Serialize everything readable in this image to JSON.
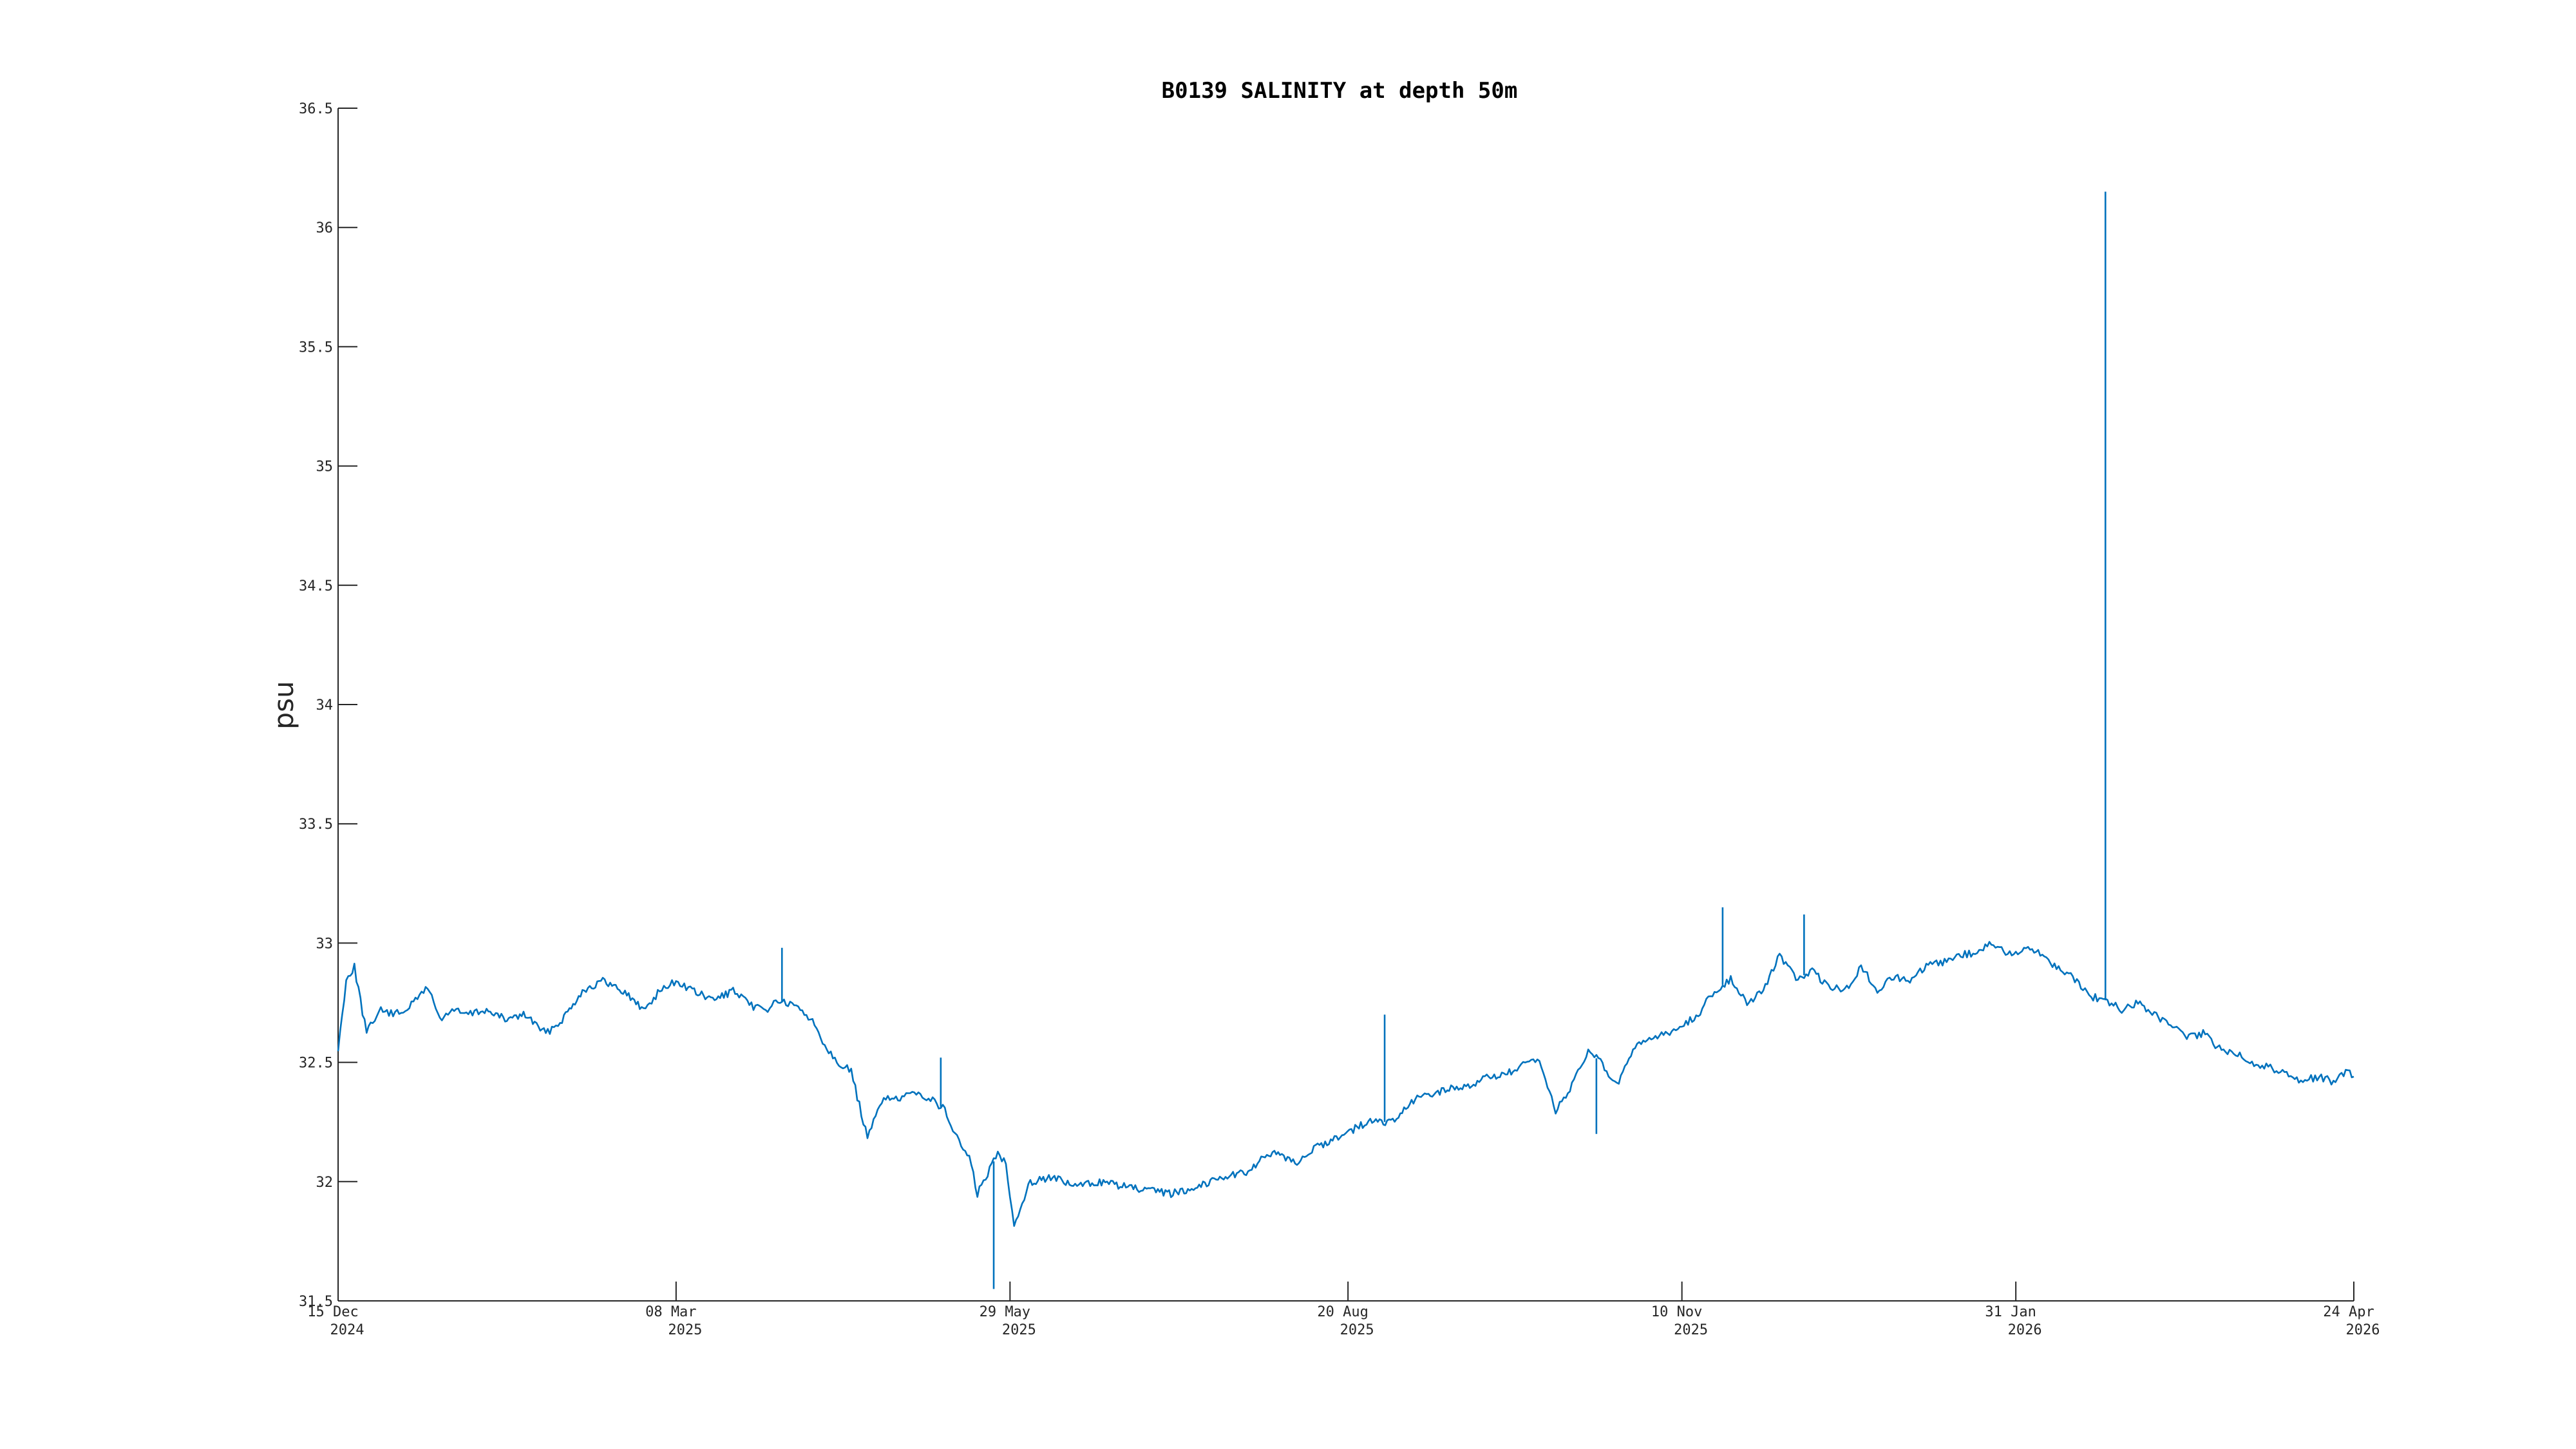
{
  "chart_data": {
    "type": "line",
    "title": "B0139 SALINITY at depth 50m",
    "ylabel": "psu",
    "xlabel": "",
    "xlim": [
      "2024-12-15",
      "2026-04-24"
    ],
    "ylim": [
      31.5,
      36.5
    ],
    "grid": false,
    "colors": {
      "series": "#0072BD",
      "axis": "#262626"
    },
    "yticks": [
      {
        "value": 31.5,
        "label": "31.5"
      },
      {
        "value": 32,
        "label": "32"
      },
      {
        "value": 32.5,
        "label": "32.5"
      },
      {
        "value": 33,
        "label": "33"
      },
      {
        "value": 33.5,
        "label": "33.5"
      },
      {
        "value": 34,
        "label": "34"
      },
      {
        "value": 34.5,
        "label": "34.5"
      },
      {
        "value": 35,
        "label": "35"
      },
      {
        "value": 35.5,
        "label": "35.5"
      },
      {
        "value": 36,
        "label": "36"
      },
      {
        "value": 36.5,
        "label": "36.5"
      }
    ],
    "xticks": [
      {
        "date": "2024-12-15",
        "line1": "15 Dec",
        "line2": "2024"
      },
      {
        "date": "2025-03-08",
        "line1": "08 Mar",
        "line2": "2025"
      },
      {
        "date": "2025-05-29",
        "line1": "29 May",
        "line2": "2025"
      },
      {
        "date": "2025-08-20",
        "line1": "20 Aug",
        "line2": "2025"
      },
      {
        "date": "2025-11-10",
        "line1": "10 Nov",
        "line2": "2025"
      },
      {
        "date": "2026-01-31",
        "line1": "31 Jan",
        "line2": "2026"
      },
      {
        "date": "2026-04-24",
        "line1": "24 Apr",
        "line2": "2026"
      }
    ],
    "series": [
      {
        "x": [
          "2024-12-15",
          "2024-12-17",
          "2024-12-19",
          "2024-12-22",
          "2024-12-25",
          "2024-12-29",
          "2025-01-02",
          "2025-01-06",
          "2025-01-09",
          "2025-01-12",
          "2025-01-16",
          "2025-01-20",
          "2025-01-25",
          "2025-01-30",
          "2025-02-04",
          "2025-02-08",
          "2025-02-13",
          "2025-02-18",
          "2025-02-23",
          "2025-02-28",
          "2025-03-04",
          "2025-03-08",
          "2025-03-12",
          "2025-03-17",
          "2025-03-22",
          "2025-03-26",
          "2025-03-30",
          "2025-04-02",
          "2025-04-05",
          "2025-04-08",
          "2025-04-11",
          "2025-04-14",
          "2025-04-17",
          "2025-04-20",
          "2025-04-24",
          "2025-04-28",
          "2025-05-02",
          "2025-05-06",
          "2025-05-10",
          "2025-05-13",
          "2025-05-16",
          "2025-05-19",
          "2025-05-21",
          "2025-05-24",
          "2025-05-26",
          "2025-05-28",
          "2025-05-30",
          "2025-06-03",
          "2025-06-08",
          "2025-06-14",
          "2025-06-20",
          "2025-06-26",
          "2025-07-02",
          "2025-07-08",
          "2025-07-14",
          "2025-07-20",
          "2025-07-26",
          "2025-08-01",
          "2025-08-07",
          "2025-08-13",
          "2025-08-19",
          "2025-08-25",
          "2025-08-31",
          "2025-09-06",
          "2025-09-12",
          "2025-09-18",
          "2025-09-24",
          "2025-09-30",
          "2025-10-03",
          "2025-10-06",
          "2025-10-10",
          "2025-10-14",
          "2025-10-18",
          "2025-10-21",
          "2025-10-25",
          "2025-10-29",
          "2025-11-02",
          "2025-11-06",
          "2025-11-10",
          "2025-11-14",
          "2025-11-18",
          "2025-11-22",
          "2025-11-26",
          "2025-11-30",
          "2025-12-04",
          "2025-12-08",
          "2025-12-12",
          "2025-12-16",
          "2025-12-20",
          "2025-12-24",
          "2025-12-28",
          "2026-01-01",
          "2026-01-05",
          "2026-01-09",
          "2026-01-13",
          "2026-01-17",
          "2026-01-21",
          "2026-01-25",
          "2026-01-29",
          "2026-02-02",
          "2026-02-06",
          "2026-02-10",
          "2026-02-14",
          "2026-02-18",
          "2026-02-22",
          "2026-02-26",
          "2026-03-02",
          "2026-03-06",
          "2026-03-10",
          "2026-03-14",
          "2026-03-18",
          "2026-03-22",
          "2026-03-26",
          "2026-03-30",
          "2026-04-03",
          "2026-04-07",
          "2026-04-11",
          "2026-04-15",
          "2026-04-19",
          "2026-04-22",
          "2026-04-24"
        ],
        "y": [
          32.55,
          32.85,
          32.9,
          32.62,
          32.72,
          32.7,
          32.74,
          32.82,
          32.68,
          32.72,
          32.7,
          32.72,
          32.68,
          32.7,
          32.62,
          32.68,
          32.8,
          32.84,
          32.8,
          32.72,
          32.8,
          32.84,
          32.8,
          32.76,
          32.8,
          32.74,
          32.72,
          32.76,
          32.74,
          32.72,
          32.66,
          32.56,
          32.5,
          32.46,
          32.18,
          32.36,
          32.34,
          32.38,
          32.34,
          32.3,
          32.18,
          32.1,
          31.95,
          32.05,
          32.12,
          32.08,
          31.82,
          32.0,
          32.02,
          31.98,
          32.0,
          31.98,
          31.96,
          31.95,
          31.98,
          32.02,
          32.04,
          32.12,
          32.08,
          32.15,
          32.2,
          32.25,
          32.25,
          32.35,
          32.38,
          32.4,
          32.44,
          32.46,
          32.5,
          32.5,
          32.3,
          32.4,
          32.55,
          32.5,
          32.4,
          32.55,
          32.6,
          32.62,
          32.65,
          32.7,
          32.8,
          32.85,
          32.75,
          32.8,
          32.95,
          32.85,
          32.88,
          32.82,
          32.8,
          32.9,
          32.8,
          32.86,
          32.84,
          32.9,
          32.92,
          32.95,
          32.96,
          33.0,
          32.95,
          32.98,
          32.96,
          32.9,
          32.86,
          32.78,
          32.76,
          32.72,
          32.75,
          32.7,
          32.66,
          32.6,
          32.62,
          32.56,
          32.54,
          32.5,
          32.48,
          32.46,
          32.42,
          32.44,
          32.42,
          32.46,
          32.44
        ]
      }
    ],
    "spikes": [
      {
        "x": "2025-04-03",
        "y": 32.98
      },
      {
        "x": "2025-05-12",
        "y": 32.52
      },
      {
        "x": "2025-05-25",
        "y": 31.55
      },
      {
        "x": "2025-08-29",
        "y": 32.7
      },
      {
        "x": "2025-10-20",
        "y": 32.2
      },
      {
        "x": "2025-11-20",
        "y": 33.15
      },
      {
        "x": "2025-12-10",
        "y": 33.12
      },
      {
        "x": "2026-02-22",
        "y": 36.15
      }
    ]
  }
}
